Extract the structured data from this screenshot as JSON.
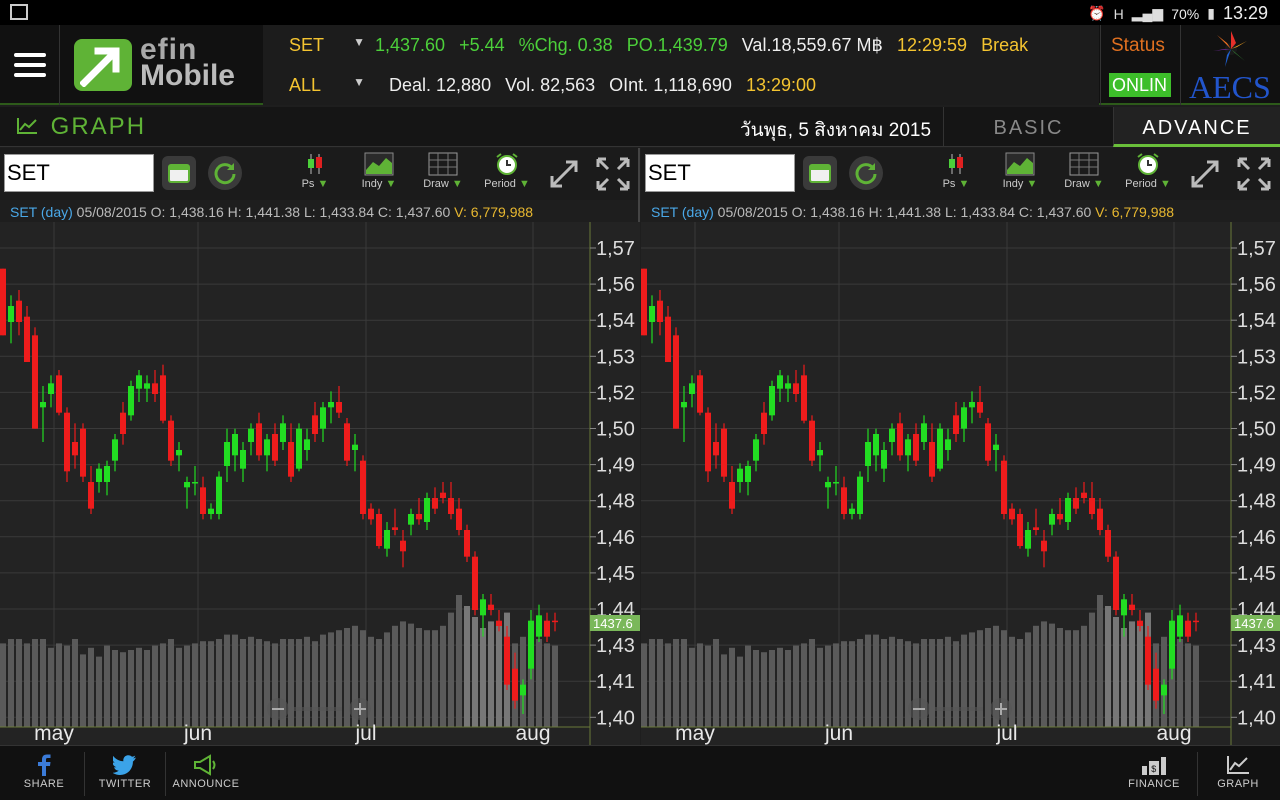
{
  "statusbar": {
    "battery": "70%",
    "time": "13:29",
    "network": "H"
  },
  "logo": {
    "line1": "efin",
    "line2": "Mobile"
  },
  "ticker": {
    "row1": {
      "symbol": "SET",
      "last": "1,437.60",
      "change": "+5.44",
      "pct_change": "%Chg. 0.38",
      "po": "PO.1,439.79",
      "val": "Val.18,559.67 M฿",
      "time": "12:29:59",
      "state": "Break"
    },
    "row2": {
      "symbol": "ALL",
      "deal": "Deal. 12,880",
      "vol": "Vol. 82,563",
      "oint": "OInt. 1,118,690",
      "time": "13:29:00"
    }
  },
  "status": {
    "label": "Status",
    "badge": "ONLIN"
  },
  "broker": {
    "name": "AECS"
  },
  "titlebar": {
    "title": "GRAPH",
    "date": "วันพุธ, 5 สิงหาคม 2015",
    "tabs": {
      "basic": "BASIC",
      "advance": "ADVANCE"
    }
  },
  "panels": [
    {
      "symbol_input": "SET",
      "tools": {
        "ps": "Ps",
        "indy": "Indy",
        "draw": "Draw",
        "period": "Period"
      },
      "info": {
        "symbol": "SET (day)",
        "ohlc": "05/08/2015 O: 1,438.16 H: 1,441.38 L: 1,433.84 C: 1,437.60",
        "volume": "V: 6,779,988"
      }
    },
    {
      "symbol_input": "SET",
      "tools": {
        "ps": "Ps",
        "indy": "Indy",
        "draw": "Draw",
        "period": "Period"
      },
      "info": {
        "symbol": "SET (day)",
        "ohlc": "05/08/2015 O: 1,438.16 H: 1,441.38 L: 1,433.84 C: 1,437.60",
        "volume": "V: 6,779,988"
      }
    }
  ],
  "bottombar": {
    "share": "SHARE",
    "twitter": "TWITTER",
    "announce": "ANNOUNCE",
    "finance": "FINANCE",
    "graph": "GRAPH"
  },
  "colors": {
    "up": "#22dd22",
    "down": "#ee1c1c",
    "accent": "#5fb336",
    "price_tag": "#7ab85a"
  },
  "chart_data": [
    {
      "type": "candlestick",
      "title": "SET (day)",
      "y_tick_labels": [
        "1,57",
        "1,56",
        "1,54",
        "1,53",
        "1,52",
        "1,50",
        "1,49",
        "1,48",
        "1,46",
        "1,45",
        "1,44",
        "1,43",
        "1,41",
        "1,40"
      ],
      "x_tick_labels": [
        "may",
        "jun",
        "jul",
        "aug"
      ],
      "ylim": [
        1400,
        1580
      ],
      "last_price_label": "1437.6",
      "candles": [
        {
          "o": 1570,
          "h": 1570,
          "l": 1545,
          "c": 1545
        },
        {
          "o": 1550,
          "h": 1560,
          "l": 1542,
          "c": 1556
        },
        {
          "o": 1558,
          "h": 1562,
          "l": 1545,
          "c": 1550
        },
        {
          "o": 1552,
          "h": 1556,
          "l": 1535,
          "c": 1535
        },
        {
          "o": 1545,
          "h": 1548,
          "l": 1510,
          "c": 1510
        },
        {
          "o": 1518,
          "h": 1526,
          "l": 1505,
          "c": 1520
        },
        {
          "o": 1523,
          "h": 1530,
          "l": 1518,
          "c": 1527
        },
        {
          "o": 1530,
          "h": 1532,
          "l": 1515,
          "c": 1516
        },
        {
          "o": 1516,
          "h": 1518,
          "l": 1490,
          "c": 1494
        },
        {
          "o": 1505,
          "h": 1512,
          "l": 1495,
          "c": 1500
        },
        {
          "o": 1510,
          "h": 1512,
          "l": 1490,
          "c": 1492
        },
        {
          "o": 1490,
          "h": 1496,
          "l": 1478,
          "c": 1480
        },
        {
          "o": 1490,
          "h": 1497,
          "l": 1486,
          "c": 1495
        },
        {
          "o": 1490,
          "h": 1498,
          "l": 1485,
          "c": 1496
        },
        {
          "o": 1498,
          "h": 1508,
          "l": 1494,
          "c": 1506
        },
        {
          "o": 1516,
          "h": 1520,
          "l": 1504,
          "c": 1508
        },
        {
          "o": 1515,
          "h": 1528,
          "l": 1513,
          "c": 1526
        },
        {
          "o": 1525,
          "h": 1532,
          "l": 1520,
          "c": 1530
        },
        {
          "o": 1525,
          "h": 1530,
          "l": 1520,
          "c": 1527
        },
        {
          "o": 1527,
          "h": 1532,
          "l": 1520,
          "c": 1523
        },
        {
          "o": 1530,
          "h": 1534,
          "l": 1512,
          "c": 1513
        },
        {
          "o": 1513,
          "h": 1515,
          "l": 1496,
          "c": 1498
        },
        {
          "o": 1500,
          "h": 1505,
          "l": 1494,
          "c": 1502
        },
        {
          "o": 1488,
          "h": 1492,
          "l": 1480,
          "c": 1490
        },
        {
          "o": 1490,
          "h": 1496,
          "l": 1485,
          "c": 1490
        },
        {
          "o": 1488,
          "h": 1492,
          "l": 1476,
          "c": 1478
        },
        {
          "o": 1478,
          "h": 1482,
          "l": 1476,
          "c": 1480
        },
        {
          "o": 1478,
          "h": 1494,
          "l": 1476,
          "c": 1492
        },
        {
          "o": 1496,
          "h": 1510,
          "l": 1490,
          "c": 1505
        },
        {
          "o": 1500,
          "h": 1510,
          "l": 1494,
          "c": 1508
        },
        {
          "o": 1495,
          "h": 1505,
          "l": 1490,
          "c": 1502
        },
        {
          "o": 1505,
          "h": 1512,
          "l": 1500,
          "c": 1510
        },
        {
          "o": 1512,
          "h": 1516,
          "l": 1498,
          "c": 1500
        },
        {
          "o": 1500,
          "h": 1508,
          "l": 1494,
          "c": 1506
        },
        {
          "o": 1508,
          "h": 1512,
          "l": 1496,
          "c": 1498
        },
        {
          "o": 1505,
          "h": 1515,
          "l": 1502,
          "c": 1512
        },
        {
          "o": 1505,
          "h": 1512,
          "l": 1490,
          "c": 1492
        },
        {
          "o": 1495,
          "h": 1512,
          "l": 1494,
          "c": 1510
        },
        {
          "o": 1502,
          "h": 1510,
          "l": 1498,
          "c": 1506
        },
        {
          "o": 1515,
          "h": 1520,
          "l": 1505,
          "c": 1508
        },
        {
          "o": 1510,
          "h": 1520,
          "l": 1505,
          "c": 1518
        },
        {
          "o": 1518,
          "h": 1524,
          "l": 1512,
          "c": 1520
        },
        {
          "o": 1520,
          "h": 1526,
          "l": 1514,
          "c": 1516
        },
        {
          "o": 1512,
          "h": 1514,
          "l": 1496,
          "c": 1498
        },
        {
          "o": 1502,
          "h": 1508,
          "l": 1494,
          "c": 1504
        },
        {
          "o": 1498,
          "h": 1500,
          "l": 1476,
          "c": 1478
        },
        {
          "o": 1480,
          "h": 1482,
          "l": 1474,
          "c": 1476
        },
        {
          "o": 1478,
          "h": 1480,
          "l": 1465,
          "c": 1466
        },
        {
          "o": 1465,
          "h": 1475,
          "l": 1462,
          "c": 1472
        },
        {
          "o": 1473,
          "h": 1480,
          "l": 1470,
          "c": 1472
        },
        {
          "o": 1468,
          "h": 1472,
          "l": 1458,
          "c": 1464
        },
        {
          "o": 1474,
          "h": 1480,
          "l": 1470,
          "c": 1478
        },
        {
          "o": 1478,
          "h": 1484,
          "l": 1474,
          "c": 1476
        },
        {
          "o": 1475,
          "h": 1486,
          "l": 1472,
          "c": 1484
        },
        {
          "o": 1484,
          "h": 1488,
          "l": 1478,
          "c": 1480
        },
        {
          "o": 1486,
          "h": 1490,
          "l": 1482,
          "c": 1484
        },
        {
          "o": 1484,
          "h": 1490,
          "l": 1476,
          "c": 1478
        },
        {
          "o": 1480,
          "h": 1484,
          "l": 1470,
          "c": 1472
        },
        {
          "o": 1472,
          "h": 1474,
          "l": 1460,
          "c": 1462
        },
        {
          "o": 1462,
          "h": 1464,
          "l": 1440,
          "c": 1442
        },
        {
          "o": 1440,
          "h": 1448,
          "l": 1432,
          "c": 1446
        },
        {
          "o": 1444,
          "h": 1448,
          "l": 1440,
          "c": 1442
        },
        {
          "o": 1438,
          "h": 1442,
          "l": 1434,
          "c": 1436
        },
        {
          "o": 1432,
          "h": 1436,
          "l": 1412,
          "c": 1414
        },
        {
          "o": 1420,
          "h": 1426,
          "l": 1405,
          "c": 1408
        },
        {
          "o": 1410,
          "h": 1416,
          "l": 1403,
          "c": 1414
        },
        {
          "o": 1420,
          "h": 1442,
          "l": 1416,
          "c": 1438
        },
        {
          "o": 1432,
          "h": 1444,
          "l": 1430,
          "c": 1440
        },
        {
          "o": 1438,
          "h": 1441,
          "l": 1430,
          "c": 1432
        },
        {
          "o": 1438,
          "h": 1441,
          "l": 1434,
          "c": 1437.6
        }
      ],
      "volumes": [
        38,
        40,
        40,
        38,
        40,
        40,
        36,
        38,
        37,
        40,
        33,
        36,
        32,
        37,
        35,
        34,
        35,
        36,
        35,
        37,
        38,
        40,
        36,
        37,
        38,
        39,
        39,
        40,
        42,
        42,
        40,
        41,
        40,
        39,
        38,
        40,
        40,
        40,
        41,
        39,
        42,
        43,
        44,
        45,
        46,
        44,
        41,
        40,
        43,
        46,
        48,
        47,
        45,
        44,
        44,
        46,
        52,
        60,
        55,
        50,
        45,
        48,
        46,
        52,
        38,
        41,
        45,
        40,
        38,
        37
      ],
      "volumes_highlight": [
        0,
        0,
        0,
        0,
        0,
        0,
        0,
        0,
        0,
        0,
        0,
        0,
        0,
        0,
        0,
        0,
        0,
        0,
        0,
        0,
        0,
        0,
        0,
        0,
        0,
        0,
        0,
        0,
        0,
        0,
        0,
        0,
        0,
        0,
        0,
        0,
        0,
        0,
        0,
        0,
        0,
        0,
        0,
        0,
        0,
        0,
        0,
        0,
        0,
        0,
        0,
        0,
        0,
        0,
        0,
        0,
        0,
        0,
        1,
        1,
        1,
        1,
        1,
        1,
        0,
        0,
        0,
        0,
        0,
        0
      ]
    }
  ]
}
